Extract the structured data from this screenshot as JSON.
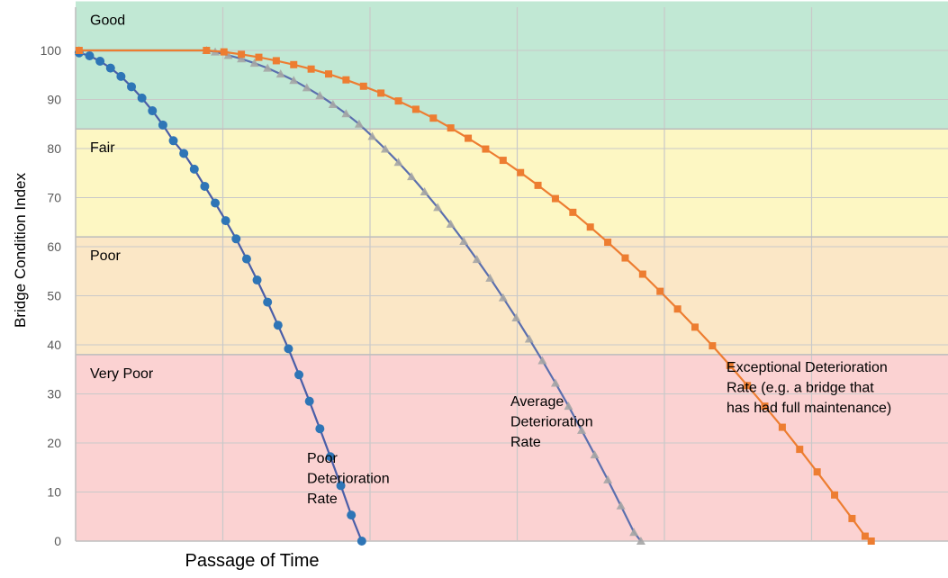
{
  "chart_data": {
    "type": "line",
    "title": "",
    "xlabel": "Passage of Time",
    "ylabel": "Bridge Condition Index",
    "ylim": [
      0,
      110
    ],
    "xlim": [
      0,
      1
    ],
    "yticks": [
      0,
      10,
      20,
      30,
      40,
      50,
      60,
      70,
      80,
      90,
      100
    ],
    "grid": true,
    "legend": "none",
    "bands": [
      {
        "label": "Good",
        "from": 84,
        "to": 110,
        "color": "#c1e8d4"
      },
      {
        "label": "Fair",
        "from": 62,
        "to": 84,
        "color": "#fdf7c3"
      },
      {
        "label": "Poor",
        "from": 38,
        "to": 62,
        "color": "#fbe7c6"
      },
      {
        "label": "Very Poor",
        "from": 0,
        "to": 38,
        "color": "#fbd2d2"
      }
    ],
    "series": [
      {
        "name": "Poor Deterioration Rate",
        "color": "#2e75b6",
        "line_color": "#4a5ea8",
        "marker": "circle",
        "points": [
          [
            0.004,
            99.5
          ],
          [
            0.016,
            98.9
          ],
          [
            0.028,
            97.8
          ],
          [
            0.04,
            96.4
          ],
          [
            0.052,
            94.7
          ],
          [
            0.064,
            92.6
          ],
          [
            0.076,
            90.3
          ],
          [
            0.088,
            87.7
          ],
          [
            0.1,
            84.8
          ],
          [
            0.112,
            81.6
          ],
          [
            0.124,
            79.0
          ],
          [
            0.136,
            75.8
          ],
          [
            0.148,
            72.3
          ],
          [
            0.16,
            68.9
          ],
          [
            0.172,
            65.3
          ],
          [
            0.184,
            61.6
          ],
          [
            0.196,
            57.5
          ],
          [
            0.208,
            53.2
          ],
          [
            0.22,
            48.7
          ],
          [
            0.232,
            44.0
          ],
          [
            0.244,
            39.2
          ],
          [
            0.256,
            33.9
          ],
          [
            0.268,
            28.5
          ],
          [
            0.28,
            22.9
          ],
          [
            0.292,
            17.2
          ],
          [
            0.304,
            11.3
          ],
          [
            0.316,
            5.3
          ],
          [
            0.328,
            0
          ]
        ]
      },
      {
        "name": "Average Deterioration Rate",
        "color": "#a5a5a5",
        "line_color": "#5b6fae",
        "marker": "triangle",
        "points": [
          [
            0.004,
            100
          ],
          [
            0.15,
            100
          ],
          [
            0.16,
            99.7
          ],
          [
            0.175,
            99.0
          ],
          [
            0.19,
            98.3
          ],
          [
            0.205,
            97.4
          ],
          [
            0.22,
            96.4
          ],
          [
            0.235,
            95.2
          ],
          [
            0.25,
            93.9
          ],
          [
            0.265,
            92.4
          ],
          [
            0.28,
            90.8
          ],
          [
            0.295,
            89.0
          ],
          [
            0.31,
            87.1
          ],
          [
            0.325,
            85.0
          ],
          [
            0.34,
            82.5
          ],
          [
            0.355,
            79.9
          ],
          [
            0.37,
            77.2
          ],
          [
            0.385,
            74.3
          ],
          [
            0.4,
            71.2
          ],
          [
            0.415,
            68.0
          ],
          [
            0.43,
            64.6
          ],
          [
            0.445,
            61.1
          ],
          [
            0.46,
            57.4
          ],
          [
            0.475,
            53.6
          ],
          [
            0.49,
            49.6
          ],
          [
            0.505,
            45.5
          ],
          [
            0.52,
            41.2
          ],
          [
            0.535,
            36.8
          ],
          [
            0.55,
            32.2
          ],
          [
            0.565,
            27.5
          ],
          [
            0.58,
            22.6
          ],
          [
            0.595,
            17.6
          ],
          [
            0.61,
            12.5
          ],
          [
            0.625,
            7.2
          ],
          [
            0.64,
            1.8
          ],
          [
            0.648,
            0
          ]
        ]
      },
      {
        "name": "Exceptional Deterioration Rate",
        "color": "#ed7d31",
        "line_color": "#ed7d31",
        "marker": "square",
        "points": [
          [
            0.004,
            100
          ],
          [
            0.15,
            100
          ],
          [
            0.17,
            99.7
          ],
          [
            0.19,
            99.2
          ],
          [
            0.21,
            98.6
          ],
          [
            0.23,
            97.9
          ],
          [
            0.25,
            97.1
          ],
          [
            0.27,
            96.2
          ],
          [
            0.29,
            95.2
          ],
          [
            0.31,
            94.0
          ],
          [
            0.33,
            92.7
          ],
          [
            0.35,
            91.3
          ],
          [
            0.37,
            89.7
          ],
          [
            0.39,
            88.0
          ],
          [
            0.41,
            86.2
          ],
          [
            0.43,
            84.2
          ],
          [
            0.45,
            82.1
          ],
          [
            0.47,
            79.9
          ],
          [
            0.49,
            77.6
          ],
          [
            0.51,
            75.1
          ],
          [
            0.53,
            72.5
          ],
          [
            0.55,
            69.8
          ],
          [
            0.57,
            67.0
          ],
          [
            0.59,
            64.0
          ],
          [
            0.61,
            60.9
          ],
          [
            0.63,
            57.7
          ],
          [
            0.65,
            54.4
          ],
          [
            0.67,
            50.9
          ],
          [
            0.69,
            47.3
          ],
          [
            0.71,
            43.6
          ],
          [
            0.73,
            39.8
          ],
          [
            0.75,
            35.8
          ],
          [
            0.77,
            31.7
          ],
          [
            0.79,
            27.5
          ],
          [
            0.81,
            23.2
          ],
          [
            0.83,
            18.7
          ],
          [
            0.85,
            14.1
          ],
          [
            0.87,
            9.4
          ],
          [
            0.89,
            4.6
          ],
          [
            0.905,
            1.0
          ],
          [
            0.912,
            0
          ]
        ]
      }
    ],
    "annotations": [
      {
        "id": "poor",
        "lines": [
          "Poor",
          "Deterioration",
          "Rate"
        ],
        "x": 0.33,
        "y": 16
      },
      {
        "id": "average",
        "lines": [
          "Average",
          "Deterioration",
          "Rate"
        ],
        "x": 0.62,
        "y": 27.5
      },
      {
        "id": "exceptional",
        "lines": [
          "Exceptional Deterioration",
          "Rate (e.g. a bridge that",
          "has had full maintenance)"
        ],
        "x": 0.83,
        "y": 34.5
      }
    ]
  }
}
